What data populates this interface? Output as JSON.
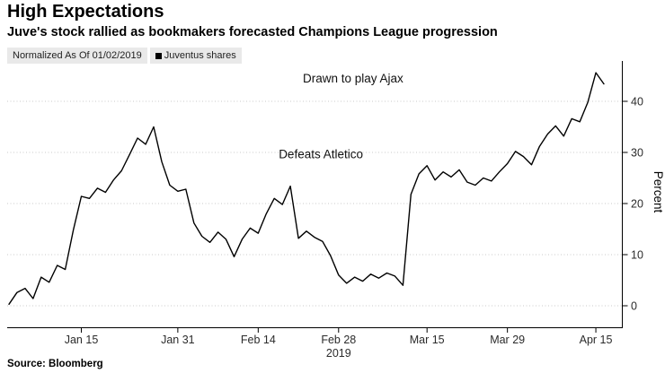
{
  "header": {
    "title": "High Expectations",
    "subtitle": "Juve's stock rallied as bookmakers forecasted Champions League progression"
  },
  "legend": {
    "note": "Normalized As Of 01/02/2019",
    "series_label": "Juventus shares",
    "series_color": "#000000"
  },
  "source": "Source: Bloomberg",
  "chart_data": {
    "type": "line",
    "title": "High Expectations",
    "subtitle": "Juve's stock rallied as bookmakers forecasted Champions League progression",
    "series_name": "Juventus shares",
    "ylabel": "Percent",
    "ylim": [
      -4,
      49
    ],
    "yticks": [
      0,
      10,
      20,
      30,
      40
    ],
    "grid": "horizontal-dotted",
    "legend_position": "top-left",
    "line_color": "#000000",
    "x": [
      "2019-01-02",
      "2019-01-03",
      "2019-01-04",
      "2019-01-07",
      "2019-01-08",
      "2019-01-09",
      "2019-01-10",
      "2019-01-11",
      "2019-01-14",
      "2019-01-15",
      "2019-01-16",
      "2019-01-17",
      "2019-01-18",
      "2019-01-21",
      "2019-01-22",
      "2019-01-23",
      "2019-01-24",
      "2019-01-25",
      "2019-01-28",
      "2019-01-29",
      "2019-01-30",
      "2019-01-31",
      "2019-02-01",
      "2019-02-04",
      "2019-02-05",
      "2019-02-06",
      "2019-02-07",
      "2019-02-08",
      "2019-02-11",
      "2019-02-12",
      "2019-02-13",
      "2019-02-14",
      "2019-02-15",
      "2019-02-18",
      "2019-02-19",
      "2019-02-20",
      "2019-02-21",
      "2019-02-22",
      "2019-02-25",
      "2019-02-26",
      "2019-02-27",
      "2019-02-28",
      "2019-03-01",
      "2019-03-04",
      "2019-03-05",
      "2019-03-06",
      "2019-03-07",
      "2019-03-08",
      "2019-03-11",
      "2019-03-12",
      "2019-03-13",
      "2019-03-14",
      "2019-03-15",
      "2019-03-18",
      "2019-03-19",
      "2019-03-20",
      "2019-03-21",
      "2019-03-22",
      "2019-03-25",
      "2019-03-26",
      "2019-03-27",
      "2019-03-28",
      "2019-03-29",
      "2019-04-01",
      "2019-04-02",
      "2019-04-03",
      "2019-04-04",
      "2019-04-05",
      "2019-04-08",
      "2019-04-09",
      "2019-04-10",
      "2019-04-11",
      "2019-04-12",
      "2019-04-15",
      "2019-04-16"
    ],
    "values": [
      0.3,
      2.6,
      3.4,
      1.4,
      5.6,
      4.6,
      7.9,
      7.1,
      14.8,
      21.4,
      21.0,
      23.0,
      22.2,
      24.6,
      26.4,
      29.6,
      32.8,
      31.6,
      35.0,
      28.2,
      23.6,
      22.4,
      22.8,
      16.2,
      13.6,
      12.4,
      14.4,
      13.0,
      9.6,
      13.0,
      15.2,
      14.2,
      18.0,
      21.0,
      19.8,
      23.4,
      13.2,
      14.6,
      13.4,
      12.6,
      9.8,
      6.0,
      4.4,
      5.6,
      4.8,
      6.2,
      5.4,
      6.4,
      5.8,
      4.0,
      21.8,
      25.8,
      27.4,
      24.6,
      26.2,
      25.2,
      26.6,
      24.2,
      23.6,
      25.0,
      24.4,
      26.2,
      27.8,
      30.2,
      29.2,
      27.6,
      31.2,
      33.6,
      35.2,
      33.2,
      36.6,
      36.0,
      39.8,
      45.6,
      43.4
    ],
    "xtick_labels": [
      "Jan 15",
      "Jan 31",
      "Feb 14",
      "Feb 28",
      "Mar 15",
      "Mar 29",
      "Apr 15"
    ],
    "xtick_indices": [
      9,
      21,
      31,
      41,
      52,
      62,
      73
    ],
    "x_year_label": "2019",
    "year_label_index": 41,
    "annotations": [
      {
        "id": "ajax",
        "text": "Drawn to play Ajax",
        "x_index": 42.8,
        "y_value": 43.7
      },
      {
        "id": "atletico",
        "text": "Defeats Atletico",
        "x_index": 38.8,
        "y_value": 28.9
      }
    ]
  }
}
